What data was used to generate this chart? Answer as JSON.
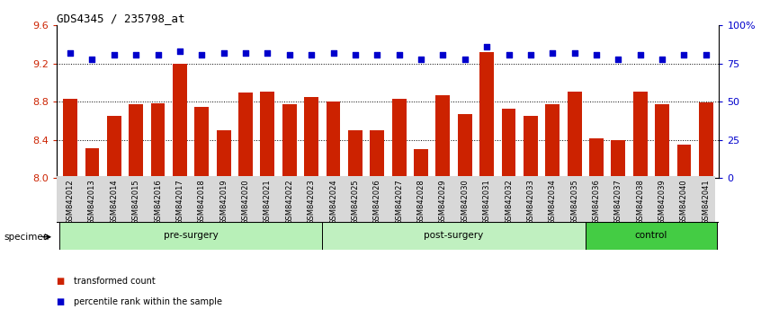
{
  "title": "GDS4345 / 235798_at",
  "categories": [
    "GSM842012",
    "GSM842013",
    "GSM842014",
    "GSM842015",
    "GSM842016",
    "GSM842017",
    "GSM842018",
    "GSM842019",
    "GSM842020",
    "GSM842021",
    "GSM842022",
    "GSM842023",
    "GSM842024",
    "GSM842025",
    "GSM842026",
    "GSM842027",
    "GSM842028",
    "GSM842029",
    "GSM842030",
    "GSM842031",
    "GSM842032",
    "GSM842033",
    "GSM842034",
    "GSM842035",
    "GSM842036",
    "GSM842037",
    "GSM842038",
    "GSM842039",
    "GSM842040",
    "GSM842041"
  ],
  "bar_values": [
    8.83,
    8.31,
    8.65,
    8.77,
    8.78,
    9.2,
    8.75,
    8.5,
    8.9,
    8.91,
    8.77,
    8.85,
    8.8,
    8.5,
    8.5,
    8.83,
    8.3,
    8.87,
    8.67,
    9.32,
    8.73,
    8.65,
    8.77,
    8.91,
    8.42,
    8.4,
    8.91,
    8.77,
    8.35,
    8.79
  ],
  "percentile_pct": [
    82,
    78,
    81,
    81,
    81,
    83,
    81,
    82,
    82,
    82,
    81,
    81,
    82,
    81,
    81,
    81,
    78,
    81,
    78,
    86,
    81,
    81,
    82,
    82,
    81,
    78,
    81,
    78,
    81,
    81
  ],
  "groups": [
    {
      "label": "pre-surgery",
      "start": 0,
      "end": 12,
      "color": "#B8F0B8"
    },
    {
      "label": "post-surgery",
      "start": 12,
      "end": 24,
      "color": "#C8F5C8"
    },
    {
      "label": "control",
      "start": 24,
      "end": 30,
      "color": "#44DD44"
    }
  ],
  "ylim_left": [
    8.0,
    9.6
  ],
  "ylim_right": [
    0,
    100
  ],
  "yticks_left": [
    8.0,
    8.4,
    8.8,
    9.2,
    9.6
  ],
  "yticks_right": [
    0,
    25,
    50,
    75,
    100
  ],
  "ytick_labels_right": [
    "0",
    "25",
    "50",
    "75",
    "100%"
  ],
  "bar_color": "#CC2200",
  "dot_color": "#0000CC",
  "bg_color": "#FFFFFF",
  "specimen_label": "specimen",
  "legend_items": [
    {
      "color": "#CC2200",
      "label": "transformed count"
    },
    {
      "color": "#0000CC",
      "label": "percentile rank within the sample"
    }
  ]
}
